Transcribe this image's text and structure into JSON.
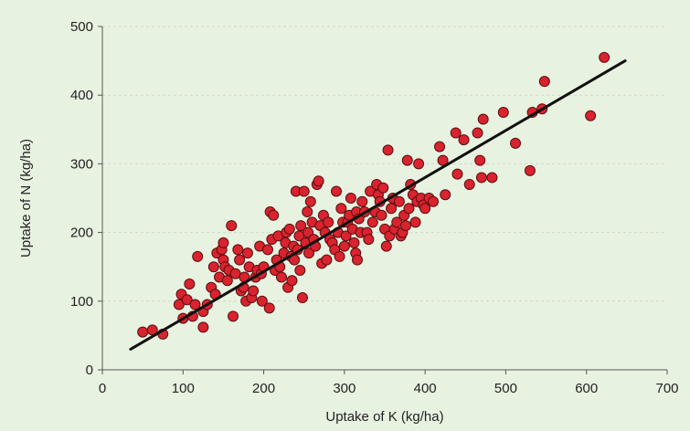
{
  "chart_data": {
    "type": "scatter",
    "xlabel": "Uptake of K (kg/ha)",
    "ylabel": "Uptake of N (kg/ha)",
    "xlim": [
      0,
      700
    ],
    "ylim": [
      0,
      500
    ],
    "x_ticks": [
      "0",
      "100",
      "200",
      "300",
      "400",
      "500",
      "600",
      "700"
    ],
    "y_ticks": [
      "0",
      "100",
      "200",
      "300",
      "400",
      "500"
    ],
    "grid": true,
    "legend": "none",
    "colors": {
      "background": "#e8f2e1",
      "grid": "#cfd8ca",
      "point_fill": "#d9232e",
      "point_stroke": "#5a0f10",
      "trend_line": "#111111",
      "axis": "#555555"
    },
    "trend_line": {
      "x": [
        35,
        648
      ],
      "y": [
        30,
        450
      ]
    },
    "points": [
      [
        50,
        55
      ],
      [
        62,
        58
      ],
      [
        75,
        52
      ],
      [
        95,
        95
      ],
      [
        98,
        110
      ],
      [
        100,
        75
      ],
      [
        105,
        102
      ],
      [
        108,
        125
      ],
      [
        112,
        78
      ],
      [
        115,
        95
      ],
      [
        118,
        165
      ],
      [
        125,
        62
      ],
      [
        125,
        85
      ],
      [
        130,
        95
      ],
      [
        135,
        120
      ],
      [
        138,
        150
      ],
      [
        140,
        110
      ],
      [
        142,
        170
      ],
      [
        145,
        135
      ],
      [
        148,
        175
      ],
      [
        150,
        160
      ],
      [
        150,
        185
      ],
      [
        152,
        150
      ],
      [
        155,
        130
      ],
      [
        157,
        145
      ],
      [
        160,
        210
      ],
      [
        162,
        78
      ],
      [
        165,
        140
      ],
      [
        168,
        175
      ],
      [
        170,
        160
      ],
      [
        172,
        115
      ],
      [
        175,
        120
      ],
      [
        176,
        135
      ],
      [
        178,
        100
      ],
      [
        180,
        170
      ],
      [
        182,
        150
      ],
      [
        185,
        105
      ],
      [
        187,
        115
      ],
      [
        190,
        135
      ],
      [
        192,
        145
      ],
      [
        195,
        180
      ],
      [
        197,
        140
      ],
      [
        198,
        100
      ],
      [
        200,
        150
      ],
      [
        205,
        175
      ],
      [
        207,
        90
      ],
      [
        208,
        230
      ],
      [
        210,
        190
      ],
      [
        212,
        225
      ],
      [
        214,
        145
      ],
      [
        216,
        160
      ],
      [
        218,
        195
      ],
      [
        220,
        150
      ],
      [
        222,
        135
      ],
      [
        225,
        170
      ],
      [
        227,
        185
      ],
      [
        228,
        200
      ],
      [
        230,
        120
      ],
      [
        232,
        205
      ],
      [
        234,
        165
      ],
      [
        235,
        130
      ],
      [
        237,
        180
      ],
      [
        238,
        160
      ],
      [
        240,
        260
      ],
      [
        242,
        175
      ],
      [
        244,
        195
      ],
      [
        245,
        145
      ],
      [
        246,
        210
      ],
      [
        248,
        105
      ],
      [
        250,
        260
      ],
      [
        252,
        185
      ],
      [
        254,
        230
      ],
      [
        255,
        200
      ],
      [
        256,
        170
      ],
      [
        258,
        245
      ],
      [
        260,
        215
      ],
      [
        262,
        190
      ],
      [
        264,
        180
      ],
      [
        266,
        270
      ],
      [
        268,
        275
      ],
      [
        270,
        210
      ],
      [
        272,
        155
      ],
      [
        274,
        225
      ],
      [
        276,
        200
      ],
      [
        278,
        160
      ],
      [
        280,
        215
      ],
      [
        282,
        190
      ],
      [
        285,
        185
      ],
      [
        288,
        175
      ],
      [
        290,
        260
      ],
      [
        292,
        200
      ],
      [
        294,
        165
      ],
      [
        296,
        235
      ],
      [
        298,
        215
      ],
      [
        300,
        180
      ],
      [
        302,
        195
      ],
      [
        304,
        215
      ],
      [
        306,
        225
      ],
      [
        308,
        250
      ],
      [
        310,
        205
      ],
      [
        312,
        185
      ],
      [
        314,
        170
      ],
      [
        315,
        230
      ],
      [
        316,
        160
      ],
      [
        318,
        220
      ],
      [
        320,
        200
      ],
      [
        322,
        245
      ],
      [
        325,
        230
      ],
      [
        328,
        200
      ],
      [
        330,
        190
      ],
      [
        332,
        260
      ],
      [
        335,
        215
      ],
      [
        338,
        230
      ],
      [
        340,
        270
      ],
      [
        342,
        255
      ],
      [
        344,
        245
      ],
      [
        346,
        225
      ],
      [
        348,
        265
      ],
      [
        350,
        205
      ],
      [
        352,
        180
      ],
      [
        354,
        320
      ],
      [
        356,
        195
      ],
      [
        358,
        235
      ],
      [
        360,
        250
      ],
      [
        362,
        205
      ],
      [
        365,
        215
      ],
      [
        368,
        245
      ],
      [
        370,
        195
      ],
      [
        372,
        200
      ],
      [
        374,
        225
      ],
      [
        376,
        210
      ],
      [
        378,
        305
      ],
      [
        380,
        235
      ],
      [
        382,
        270
      ],
      [
        385,
        255
      ],
      [
        388,
        215
      ],
      [
        390,
        245
      ],
      [
        392,
        300
      ],
      [
        395,
        250
      ],
      [
        398,
        240
      ],
      [
        400,
        235
      ],
      [
        405,
        250
      ],
      [
        410,
        245
      ],
      [
        418,
        325
      ],
      [
        422,
        305
      ],
      [
        425,
        255
      ],
      [
        438,
        345
      ],
      [
        440,
        285
      ],
      [
        448,
        335
      ],
      [
        455,
        270
      ],
      [
        465,
        345
      ],
      [
        468,
        305
      ],
      [
        470,
        280
      ],
      [
        472,
        365
      ],
      [
        483,
        280
      ],
      [
        497,
        375
      ],
      [
        512,
        330
      ],
      [
        530,
        290
      ],
      [
        533,
        375
      ],
      [
        545,
        380
      ],
      [
        548,
        420
      ],
      [
        605,
        370
      ],
      [
        622,
        455
      ]
    ]
  }
}
